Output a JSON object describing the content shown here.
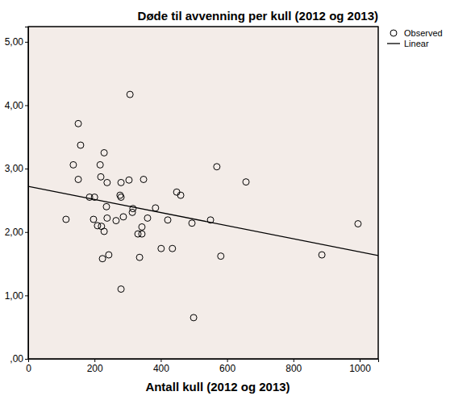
{
  "chart_data": {
    "type": "scatter",
    "title": "Døde til avvenning per kull (2012 og 2013)",
    "x_label": "Antall kull (2012 og 2013)",
    "xlim": [
      0,
      1056
    ],
    "ylim": [
      0,
      5.24
    ],
    "xticks": [
      0,
      200,
      400,
      600,
      800,
      1000
    ],
    "yticks": [
      {
        "value": 0,
        "label": ",00"
      },
      {
        "value": 1,
        "label": "1,00"
      },
      {
        "value": 2,
        "label": "2,00"
      },
      {
        "value": 3,
        "label": "3,00"
      },
      {
        "value": 4,
        "label": "4,00"
      },
      {
        "value": 5,
        "label": "5,00"
      }
    ],
    "grid": false,
    "legend": "right",
    "series": [
      {
        "name": "Observed",
        "type": "scatter",
        "marker": "circle",
        "color": "#000000",
        "x": [
          114,
          136,
          151,
          151,
          158,
          185,
          197,
          200,
          209,
          217,
          219,
          221,
          224,
          229,
          229,
          236,
          238,
          238,
          243,
          265,
          277,
          280,
          280,
          280,
          287,
          304,
          307,
          314,
          316,
          331,
          336,
          343,
          343,
          348,
          360,
          384,
          401,
          421,
          435,
          448,
          460,
          494,
          499,
          550,
          569,
          581,
          657,
          886,
          995
        ],
        "values": [
          2.2,
          3.06,
          3.71,
          2.83,
          3.37,
          2.55,
          2.2,
          2.55,
          2.1,
          3.06,
          2.87,
          2.09,
          1.58,
          2.01,
          3.25,
          2.4,
          2.22,
          2.78,
          1.64,
          2.18,
          2.58,
          2.78,
          2.55,
          1.1,
          2.24,
          2.82,
          4.17,
          2.31,
          2.37,
          1.97,
          1.6,
          2.08,
          1.97,
          2.83,
          2.22,
          2.38,
          1.74,
          2.19,
          1.74,
          2.63,
          2.58,
          2.14,
          0.65,
          2.19,
          3.03,
          1.62,
          2.79,
          1.64,
          2.13
        ]
      },
      {
        "name": "Linear",
        "type": "line",
        "line_style": "solid",
        "color": "#000000",
        "x": [
          0,
          1056
        ],
        "values": [
          2.72,
          1.63
        ]
      }
    ]
  }
}
